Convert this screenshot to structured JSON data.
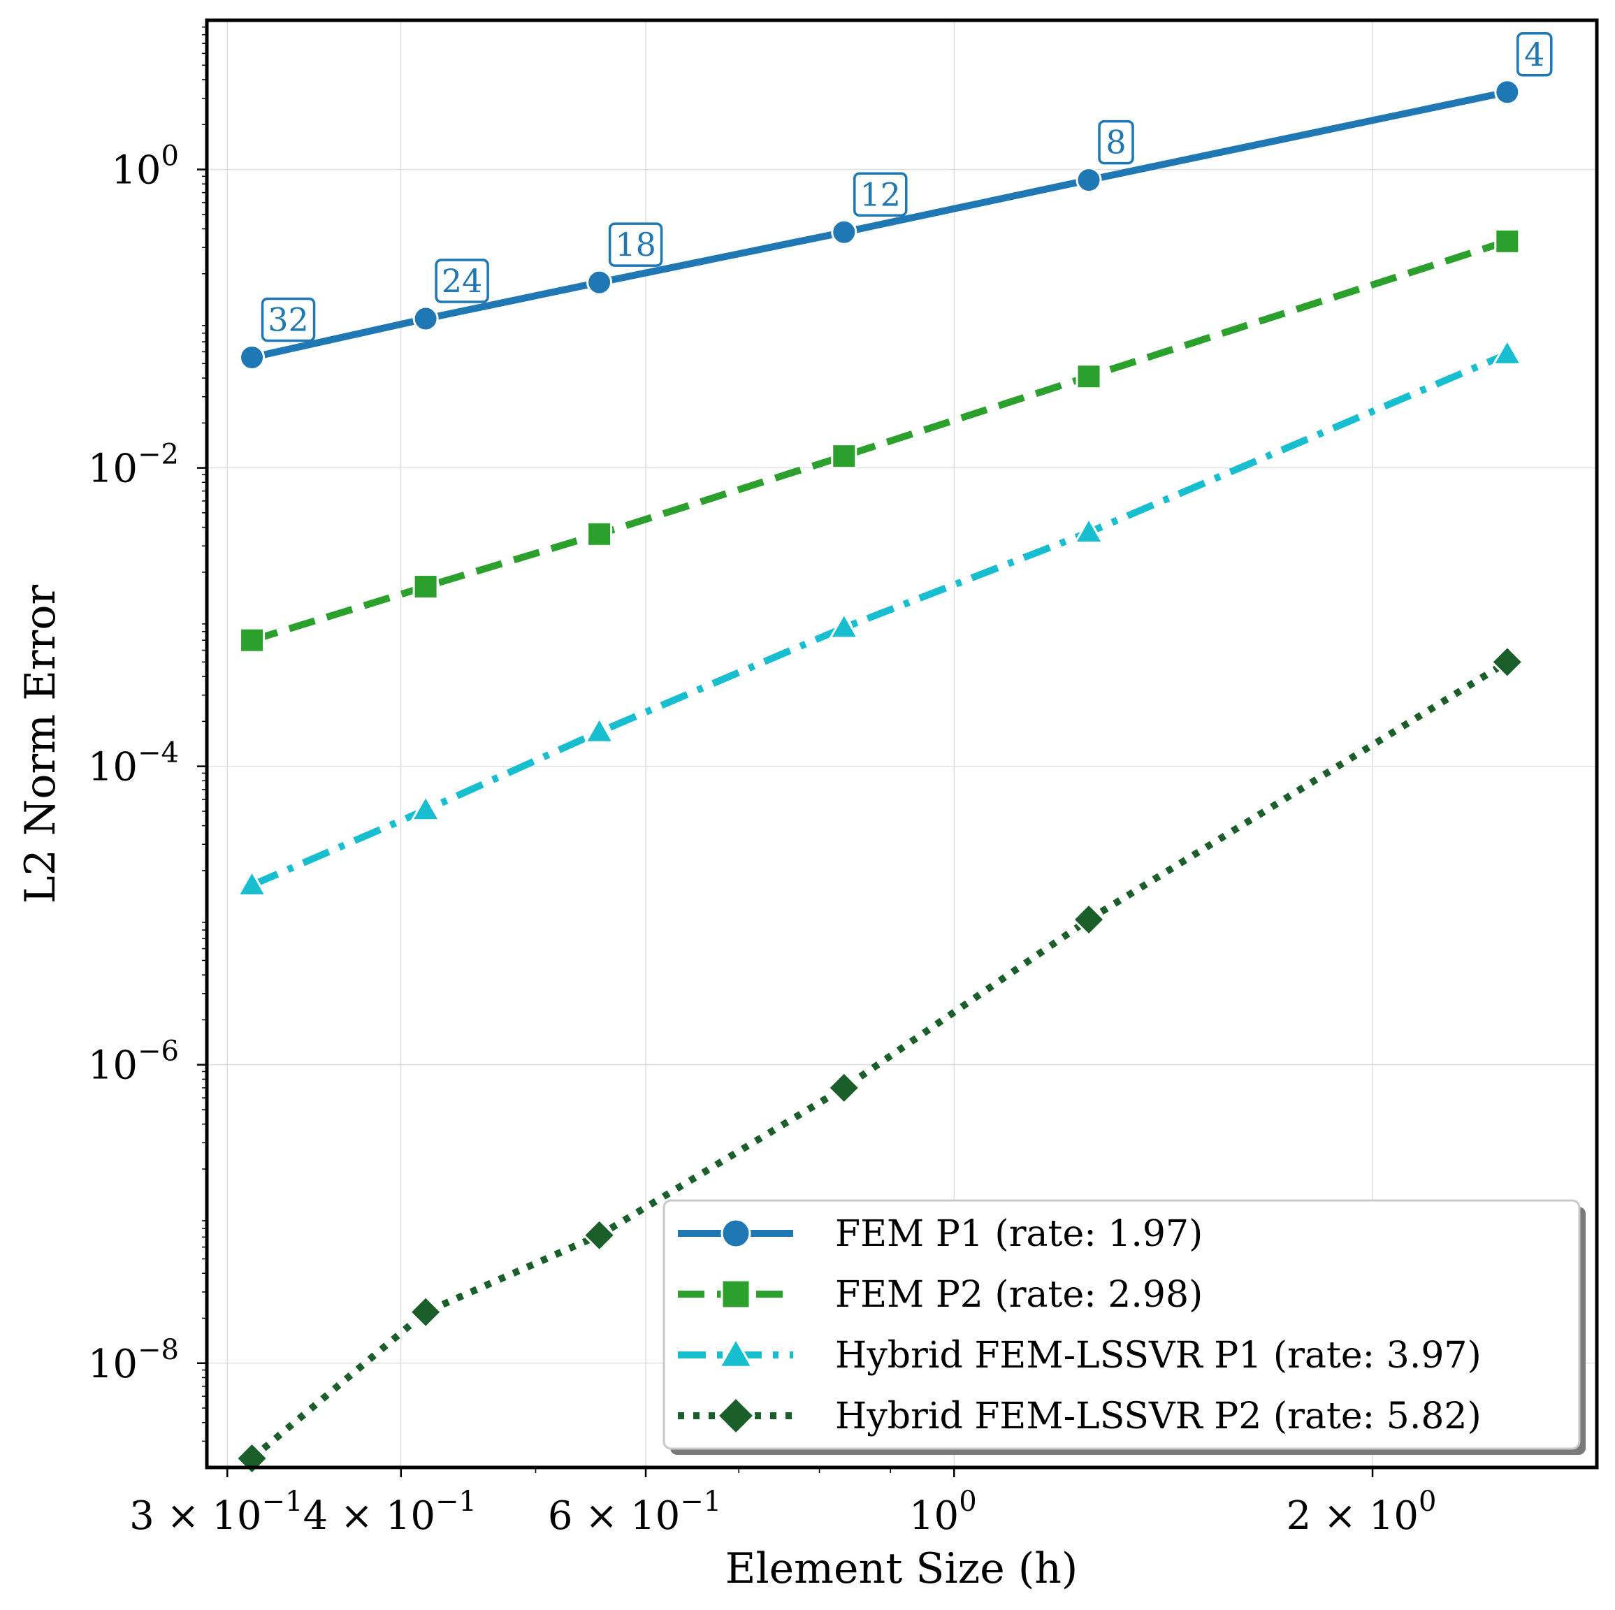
{
  "chart_data": {
    "type": "line",
    "xscale": "log",
    "yscale": "log",
    "xlabel": "Element Size (h)",
    "ylabel": "L2 Norm Error",
    "xlim": [
      0.29,
      2.9
    ],
    "ylim": [
      2e-09,
      10
    ],
    "grid": true,
    "legend_position": "bottom-right",
    "x_ticks": [
      {
        "value": 0.3,
        "label": "3 × 10",
        "exp": "−1"
      },
      {
        "value": 0.4,
        "label": "4 × 10",
        "exp": "−1"
      },
      {
        "value": 0.6,
        "label": "6 × 10",
        "exp": "−1"
      },
      {
        "value": 1.0,
        "label": "10",
        "exp": "0"
      },
      {
        "value": 2.0,
        "label": "2 × 10",
        "exp": "0"
      }
    ],
    "y_ticks": [
      {
        "value": 1,
        "label": "10",
        "exp": "0"
      },
      {
        "value": 0.01,
        "label": "10",
        "exp": "−2"
      },
      {
        "value": 0.0001,
        "label": "10",
        "exp": "−4"
      },
      {
        "value": 1e-06,
        "label": "10",
        "exp": "−6"
      },
      {
        "value": 1e-08,
        "label": "10",
        "exp": "−8"
      }
    ],
    "x": [
      0.3125,
      0.4167,
      0.5556,
      0.8333,
      1.25,
      2.5
    ],
    "point_labels": [
      "32",
      "24",
      "18",
      "12",
      "8",
      "4"
    ],
    "series": [
      {
        "name": "FEM P1 (rate: 1.97)",
        "color": "#1f77b4",
        "marker": "circle",
        "dash": "solid",
        "values": [
          0.055,
          0.1,
          0.175,
          0.38,
          0.85,
          3.3
        ]
      },
      {
        "name": "FEM P2 (rate: 2.98)",
        "color": "#2ca02c",
        "marker": "square",
        "dash": "dashed",
        "values": [
          0.0007,
          0.0016,
          0.0036,
          0.012,
          0.041,
          0.33
        ]
      },
      {
        "name": "Hybrid FEM-LSSVR P1 (rate: 3.97)",
        "color": "#17becf",
        "marker": "triangle",
        "dash": "dashdot",
        "values": [
          1.6e-05,
          5.1e-05,
          0.00017,
          0.00085,
          0.0037,
          0.058
        ]
      },
      {
        "name": "Hybrid FEM-LSSVR P2 (rate: 5.82)",
        "color": "#1a5e2a",
        "marker": "diamond",
        "dash": "dotted",
        "values": [
          2.3e-09,
          2.2e-08,
          7.2e-08,
          7e-07,
          9.4e-06,
          0.0005
        ]
      }
    ]
  }
}
